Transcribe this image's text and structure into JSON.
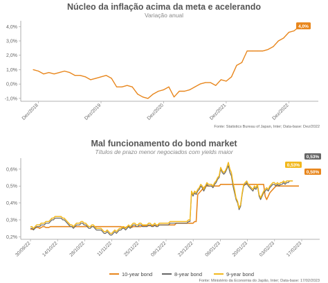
{
  "chart_data": [
    {
      "type": "line",
      "title": "Núcleo da inflação acima da meta e acelerando",
      "subtitle": "Variação anual",
      "source": "Fonte: Statistics Bureau of Japan, Inter; Data-base: Dez/2022",
      "yticks": [
        "4,0%",
        "3,0%",
        "2,0%",
        "1,0%",
        "0,0%",
        "-1,0%"
      ],
      "ytick_values": [
        4,
        3,
        2,
        1,
        0,
        -1
      ],
      "ylim": [
        -1.2,
        4.4
      ],
      "xticks": [
        "Dez/2018",
        "Dez/2019",
        "Dez/2020",
        "Dez/2021",
        "Dez/2022"
      ],
      "xtick_index": [
        1,
        13,
        25,
        37,
        49
      ],
      "end_label": "4,0%",
      "color": "#e8861c",
      "series": [
        {
          "values": [
            1.0,
            0.9,
            0.7,
            0.8,
            0.7,
            0.8,
            0.9,
            0.8,
            0.6,
            0.6,
            0.5,
            0.3,
            0.4,
            0.5,
            0.6,
            0.4,
            -0.2,
            -0.2,
            -0.1,
            -0.2,
            -0.7,
            -0.9,
            -1.0,
            -0.7,
            -0.5,
            -0.4,
            -0.2,
            -0.9,
            -0.5,
            -0.5,
            -0.4,
            -0.2,
            0.0,
            0.1,
            0.1,
            -0.1,
            0.3,
            0.2,
            0.5,
            1.3,
            1.5,
            2.3,
            2.3,
            2.3,
            2.3,
            2.4,
            2.6,
            3.0,
            3.2,
            3.6,
            3.7,
            4.0,
            4.0
          ]
        }
      ]
    },
    {
      "type": "line",
      "title": "Mal funcionamento do bond market",
      "subtitle": "Títulos de prazo menor negociados com yields maior",
      "source": "Fonte: Ministério da Economia do Japão, Inter; Data-base: 17/02/2023",
      "yticks": [
        "0,6%",
        "0,5%",
        "0,4%",
        "0,3%",
        "0,2%"
      ],
      "ytick_values": [
        0.6,
        0.5,
        0.4,
        0.3,
        0.2
      ],
      "ylim": [
        0.185,
        0.665
      ],
      "xticks": [
        "30/09/22",
        "14/10/22",
        "28/10/22",
        "11/11/22",
        "25/11/22",
        "09/12/22",
        "23/12/22",
        "06/01/23",
        "20/01/23",
        "03/02/23",
        "17/02/23"
      ],
      "series": [
        {
          "name": "10-year bond",
          "color": "#e8861c",
          "end_label": "0,50%",
          "values": [
            0.245,
            0.245,
            0.245,
            0.255,
            0.255,
            0.255,
            0.25,
            0.255,
            0.26,
            0.26,
            0.255,
            0.255,
            0.255,
            0.26,
            0.26,
            0.26,
            0.26,
            0.26,
            0.26,
            0.26,
            0.26,
            0.26,
            0.26,
            0.26,
            0.26,
            0.26,
            0.26,
            0.26,
            0.26,
            0.26,
            0.26,
            0.26,
            0.26,
            0.26,
            0.26,
            0.26,
            0.26,
            0.26,
            0.26,
            0.26,
            0.26,
            0.26,
            0.26,
            0.26,
            0.26,
            0.26,
            0.26,
            0.26,
            0.26,
            0.26,
            0.26,
            0.26,
            0.26,
            0.26,
            0.26,
            0.26,
            0.26,
            0.26,
            0.26,
            0.26,
            0.255,
            0.255,
            0.255,
            0.26,
            0.26,
            0.26,
            0.255,
            0.26,
            0.26,
            0.26,
            0.26,
            0.26,
            0.26,
            0.265,
            0.265,
            0.265,
            0.265,
            0.265,
            0.265,
            0.265,
            0.265,
            0.265,
            0.265,
            0.27,
            0.27,
            0.27,
            0.27,
            0.27,
            0.27,
            0.27,
            0.27,
            0.27,
            0.27,
            0.27,
            0.27,
            0.28,
            0.28,
            0.28,
            0.28,
            0.28,
            0.28,
            0.28,
            0.28,
            0.28,
            0.28,
            0.28,
            0.28,
            0.29,
            0.29,
            0.45,
            0.46,
            0.47,
            0.48,
            0.49,
            0.5,
            0.5,
            0.5,
            0.5,
            0.5,
            0.5,
            0.5,
            0.5,
            0.5,
            0.5,
            0.51,
            0.51,
            0.51,
            0.51,
            0.51,
            0.51,
            0.51,
            0.51,
            0.51,
            0.51,
            0.51,
            0.51,
            0.51,
            0.51,
            0.51,
            0.51,
            0.51,
            0.51,
            0.51,
            0.51,
            0.51,
            0.51,
            0.51,
            0.51,
            0.51,
            0.51,
            0.51,
            0.51,
            0.51,
            0.44,
            0.42,
            0.44,
            0.46,
            0.47,
            0.48,
            0.49,
            0.5,
            0.5,
            0.5,
            0.5,
            0.5,
            0.5,
            0.5,
            0.5,
            0.5,
            0.5,
            0.5,
            0.5,
            0.5,
            0.5,
            0.5,
            0.5
          ]
        },
        {
          "name": "8-year bond",
          "color": "#666666",
          "end_label": "0,53%",
          "values": [
            0.25,
            0.25,
            0.24,
            0.25,
            0.26,
            0.26,
            0.26,
            0.27,
            0.27,
            0.27,
            0.28,
            0.28,
            0.28,
            0.29,
            0.3,
            0.3,
            0.31,
            0.31,
            0.31,
            0.31,
            0.31,
            0.3,
            0.3,
            0.29,
            0.28,
            0.27,
            0.26,
            0.26,
            0.25,
            0.26,
            0.27,
            0.27,
            0.27,
            0.28,
            0.28,
            0.27,
            0.27,
            0.26,
            0.25,
            0.25,
            0.26,
            0.26,
            0.25,
            0.24,
            0.24,
            0.24,
            0.24,
            0.23,
            0.22,
            0.22,
            0.23,
            0.22,
            0.21,
            0.21,
            0.22,
            0.23,
            0.22,
            0.23,
            0.24,
            0.24,
            0.25,
            0.25,
            0.24,
            0.25,
            0.26,
            0.25,
            0.26,
            0.27,
            0.27,
            0.26,
            0.26,
            0.27,
            0.27,
            0.26,
            0.26,
            0.26,
            0.26,
            0.27,
            0.27,
            0.26,
            0.26,
            0.27,
            0.26,
            0.26,
            0.27,
            0.27,
            0.27,
            0.27,
            0.27,
            0.27,
            0.27,
            0.28,
            0.28,
            0.28,
            0.28,
            0.28,
            0.28,
            0.28,
            0.28,
            0.28,
            0.28,
            0.28,
            0.28,
            0.29,
            0.29,
            0.46,
            0.44,
            0.46,
            0.45,
            0.47,
            0.48,
            0.5,
            0.49,
            0.47,
            0.49,
            0.51,
            0.5,
            0.5,
            0.5,
            0.49,
            0.51,
            0.52,
            0.54,
            0.55,
            0.6,
            0.58,
            0.57,
            0.58,
            0.6,
            0.62,
            0.58,
            0.56,
            0.5,
            0.46,
            0.42,
            0.4,
            0.36,
            0.38,
            0.45,
            0.5,
            0.51,
            0.52,
            0.5,
            0.49,
            0.48,
            0.47,
            0.49,
            0.48,
            0.5,
            0.44,
            0.42,
            0.44,
            0.46,
            0.47,
            0.48,
            0.47,
            0.49,
            0.5,
            0.51,
            0.51,
            0.5,
            0.51,
            0.5,
            0.51,
            0.51,
            0.52,
            0.51,
            0.52,
            0.52,
            0.53,
            0.53,
            0.53
          ]
        },
        {
          "name": "9-year bond",
          "color": "#f2b81c",
          "end_label": "0,53%",
          "values": [
            0.26,
            0.26,
            0.25,
            0.26,
            0.27,
            0.27,
            0.27,
            0.28,
            0.28,
            0.28,
            0.29,
            0.29,
            0.29,
            0.3,
            0.31,
            0.31,
            0.32,
            0.32,
            0.32,
            0.32,
            0.32,
            0.31,
            0.31,
            0.3,
            0.29,
            0.28,
            0.27,
            0.27,
            0.26,
            0.27,
            0.28,
            0.28,
            0.28,
            0.29,
            0.29,
            0.28,
            0.28,
            0.27,
            0.26,
            0.26,
            0.27,
            0.27,
            0.26,
            0.25,
            0.25,
            0.25,
            0.25,
            0.24,
            0.23,
            0.23,
            0.24,
            0.23,
            0.22,
            0.22,
            0.23,
            0.24,
            0.23,
            0.24,
            0.25,
            0.25,
            0.26,
            0.26,
            0.25,
            0.26,
            0.27,
            0.26,
            0.27,
            0.28,
            0.28,
            0.27,
            0.27,
            0.28,
            0.28,
            0.27,
            0.27,
            0.27,
            0.27,
            0.28,
            0.28,
            0.27,
            0.27,
            0.28,
            0.27,
            0.27,
            0.28,
            0.28,
            0.28,
            0.28,
            0.28,
            0.28,
            0.28,
            0.29,
            0.29,
            0.29,
            0.29,
            0.29,
            0.29,
            0.29,
            0.29,
            0.29,
            0.29,
            0.29,
            0.29,
            0.3,
            0.3,
            0.47,
            0.45,
            0.47,
            0.46,
            0.48,
            0.49,
            0.51,
            0.5,
            0.48,
            0.5,
            0.52,
            0.51,
            0.51,
            0.51,
            0.5,
            0.52,
            0.53,
            0.55,
            0.56,
            0.61,
            0.59,
            0.58,
            0.59,
            0.61,
            0.64,
            0.6,
            0.58,
            0.52,
            0.48,
            0.43,
            0.41,
            0.37,
            0.39,
            0.46,
            0.51,
            0.52,
            0.53,
            0.51,
            0.5,
            0.49,
            0.48,
            0.5,
            0.49,
            0.51,
            0.45,
            0.43,
            0.45,
            0.47,
            0.48,
            0.49,
            0.48,
            0.5,
            0.51,
            0.52,
            0.52,
            0.51,
            0.52,
            0.51,
            0.52,
            0.52,
            0.53,
            0.52,
            0.53,
            0.53,
            0.53,
            0.53,
            0.53
          ]
        }
      ]
    }
  ]
}
